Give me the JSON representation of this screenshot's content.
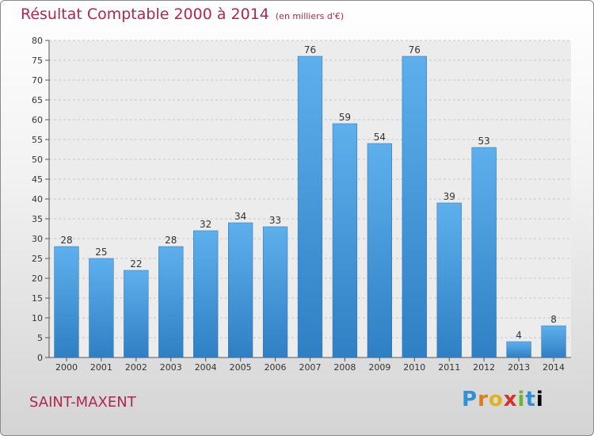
{
  "chart_data": {
    "type": "bar",
    "title": "Résultat Comptable 2000 à 2014",
    "unit_note": "(en milliers d'€)",
    "categories": [
      "2000",
      "2001",
      "2002",
      "2003",
      "2004",
      "2005",
      "2006",
      "2007",
      "2008",
      "2009",
      "2010",
      "2011",
      "2012",
      "2013",
      "2014"
    ],
    "values": [
      28,
      25,
      22,
      28,
      32,
      34,
      33,
      76,
      59,
      54,
      76,
      39,
      53,
      4,
      8
    ],
    "ylim": [
      0,
      80
    ],
    "yticks": [
      0,
      5,
      10,
      15,
      20,
      25,
      30,
      35,
      40,
      45,
      50,
      55,
      60,
      65,
      70,
      75,
      80
    ],
    "xlabel": "",
    "ylabel": "",
    "grid": true,
    "bar_color": "#4a9fe0"
  },
  "commune": "SAINT-MAXENT",
  "logo": {
    "letters": [
      "P",
      "r",
      "o",
      "x",
      "i",
      "t",
      "i"
    ]
  }
}
